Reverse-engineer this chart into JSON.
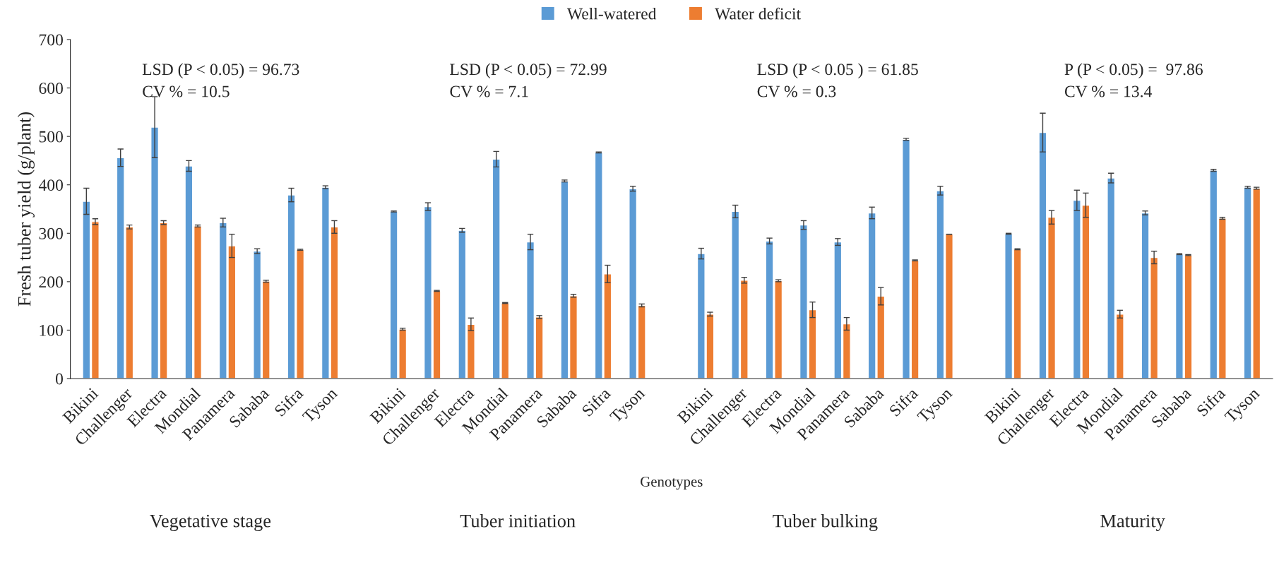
{
  "chart_data": {
    "type": "bar",
    "ylabel": "Fresh tuber yield (g/plant)",
    "xlabel": "Genotypes",
    "categories": [
      "Bikini",
      "Challenger",
      "Electra",
      "Mondial",
      "Panamera",
      "Sababa",
      "Sifra",
      "Tyson",
      null,
      "Bikini",
      "Challenger",
      "Electra",
      "Mondial",
      "Panamera",
      "Sababa",
      "Sifra",
      "Tyson",
      null,
      "Bikini",
      "Challenger",
      "Electra",
      "Mondial",
      "Panamera",
      "Sababa",
      "Sifra",
      "Tyson",
      null,
      "Bikini",
      "Challenger",
      "Electra",
      "Mondial",
      "Panamera",
      "Sababa",
      "Sifra",
      "Tyson"
    ],
    "series": [
      {
        "name": "Well-watered",
        "color": "#5b9bd5",
        "values": [
          366,
          456,
          519,
          439,
          322,
          263,
          379,
          395,
          null,
          345,
          355,
          306,
          453,
          282,
          408,
          467,
          392,
          null,
          258,
          345,
          284,
          317,
          282,
          342,
          494,
          388,
          null,
          299,
          508,
          368,
          414,
          342,
          257,
          430,
          395
        ],
        "errors": [
          27,
          18,
          63,
          11,
          9,
          5,
          14,
          3,
          null,
          1,
          8,
          4,
          16,
          16,
          2,
          1,
          5,
          null,
          11,
          13,
          6,
          9,
          7,
          12,
          2,
          9,
          null,
          1,
          40,
          21,
          10,
          4,
          1,
          2,
          2
        ]
      },
      {
        "name": "Water deficit",
        "color": "#ed7d31",
        "values": [
          324,
          313,
          322,
          315,
          274,
          201,
          266,
          313,
          null,
          102,
          181,
          112,
          156,
          127,
          171,
          216,
          151,
          null,
          133,
          203,
          202,
          142,
          113,
          170,
          244,
          298,
          null,
          267,
          333,
          358,
          133,
          250,
          255,
          331,
          393
        ],
        "errors": [
          6,
          4,
          4,
          2,
          24,
          2,
          1,
          13,
          null,
          2,
          1,
          13,
          1,
          3,
          3,
          18,
          3,
          null,
          4,
          6,
          2,
          16,
          13,
          18,
          1,
          0,
          null,
          1,
          14,
          25,
          8,
          13,
          1,
          2,
          2
        ]
      }
    ],
    "ylim": [
      0,
      700
    ],
    "yticks": [
      0,
      100,
      200,
      300,
      400,
      500,
      600,
      700
    ],
    "legend": "top",
    "annotations": [
      "LSD (P < 0.05) = 96.73\nCV % = 10.5",
      "LSD (P < 0.05) = 72.99\nCV % = 7.1",
      "LSD (P < 0.05 ) = 61.85\nCV % = 0.3",
      "P (P < 0.05) =  97.86\nCV % = 13.4",
      "Vegetative stage",
      "Tuber initiation",
      "Tuber bulking",
      "Maturity"
    ]
  }
}
